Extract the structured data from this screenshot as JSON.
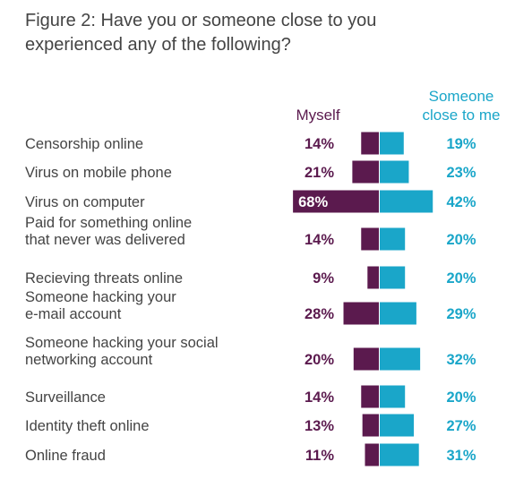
{
  "title_lines": [
    "Figure 2: Have you or someone close to you",
    "experienced any of the following?"
  ],
  "colors": {
    "myself": "#5b1a4e",
    "other": "#1aa6c9",
    "text": "#444444"
  },
  "chart_data": {
    "type": "bar",
    "orientation": "horizontal-diverging",
    "title": "Figure 2: Have you or someone close to you experienced any of the following?",
    "categories": [
      [
        "Censorship online"
      ],
      [
        "Virus on mobile phone"
      ],
      [
        "Virus on computer"
      ],
      [
        "Paid for something online",
        "that never was delivered"
      ],
      [
        "Recieving threats online"
      ],
      [
        "Someone hacking your",
        "e-mail account"
      ],
      [
        "Someone hacking your social",
        "networking account"
      ],
      [
        "Surveillance"
      ],
      [
        "Identity theft online"
      ],
      [
        "Online fraud"
      ]
    ],
    "series": [
      {
        "name": "Myself",
        "values": [
          14,
          21,
          68,
          14,
          9,
          28,
          20,
          14,
          13,
          11
        ]
      },
      {
        "name_lines": [
          "Someone",
          "close to me"
        ],
        "name": "Someone close to me",
        "values": [
          19,
          23,
          42,
          20,
          20,
          29,
          32,
          20,
          27,
          31
        ]
      }
    ],
    "value_suffix": "%",
    "grid": false,
    "legend": "column headers"
  }
}
